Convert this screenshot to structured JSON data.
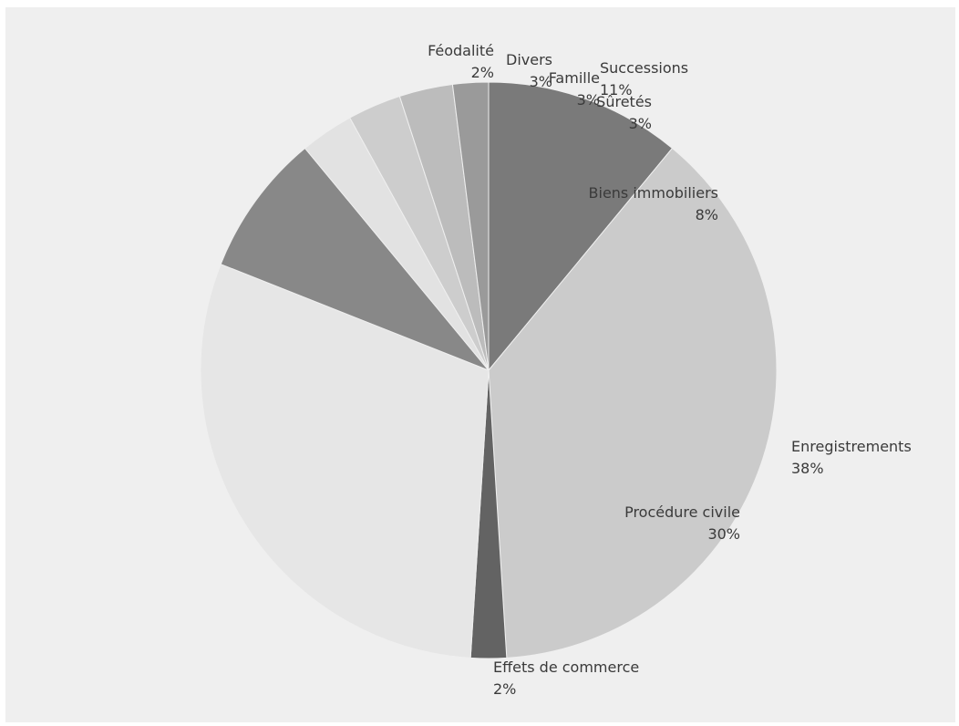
{
  "chart_data": {
    "type": "pie",
    "title": "",
    "start_angle_deg": 0,
    "direction": "clockwise",
    "legend": "none",
    "slices": [
      {
        "label": "Successions",
        "value": 11,
        "value_label": "11%",
        "color": "#7a7a7a"
      },
      {
        "label": "Enregistrements",
        "value": 38,
        "value_label": "38%",
        "color": "#cbcbcb"
      },
      {
        "label": "Effets de commerce",
        "value": 2,
        "value_label": "2%",
        "color": "#636363"
      },
      {
        "label": "Procédure civile",
        "value": 30,
        "value_label": "30%",
        "color": "#e6e6e6"
      },
      {
        "label": "Biens immobiliers",
        "value": 8,
        "value_label": "8%",
        "color": "#888888"
      },
      {
        "label": "Sûretés",
        "value": 3,
        "value_label": "3%",
        "color": "#e2e2e2"
      },
      {
        "label": "Famille",
        "value": 3,
        "value_label": "3%",
        "color": "#cdcdcd"
      },
      {
        "label": "Divers",
        "value": 3,
        "value_label": "3%",
        "color": "#bcbcbc"
      },
      {
        "label": "Féodalité",
        "value": 2,
        "value_label": "2%",
        "color": "#9a9a9a"
      }
    ]
  }
}
